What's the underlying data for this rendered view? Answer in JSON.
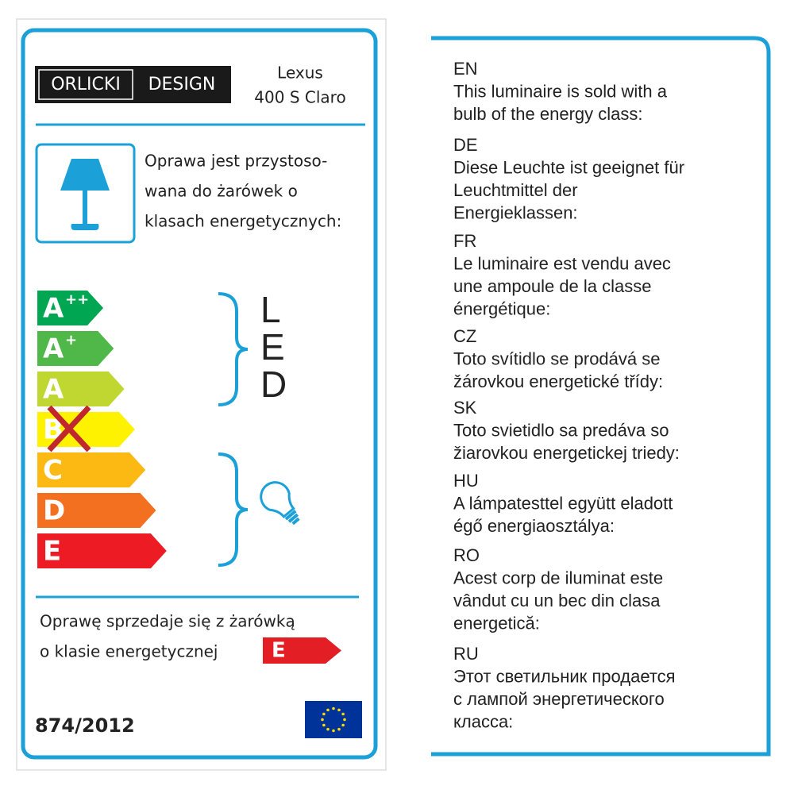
{
  "header": {
    "brand": [
      "ORLICKI",
      "DESIGN"
    ],
    "model": [
      "Lexus",
      "400 S Claro"
    ]
  },
  "intro": [
    "Oprawa jest przystoso-",
    "wana do żarówek o",
    "klasach energetycznych:"
  ],
  "classes": [
    {
      "letter": "A",
      "sup": "++"
    },
    {
      "letter": "A",
      "sup": "+"
    },
    {
      "letter": "A"
    },
    {
      "letter": "B"
    },
    {
      "letter": "C"
    },
    {
      "letter": "D"
    },
    {
      "letter": "E"
    }
  ],
  "led": [
    "L",
    "E",
    "D"
  ],
  "sold": {
    "lines": [
      "Oprawę sprzedaje się z żarówką",
      "o klasie energetycznej"
    ],
    "class": "E"
  },
  "regulation": "874/2012",
  "languages": [
    {
      "code": "EN",
      "lines": [
        "This luminaire is sold with a",
        "bulb of the energy class:"
      ]
    },
    {
      "code": "DE",
      "lines": [
        "Diese Leuchte ist geeignet für",
        "Leuchtmittel der",
        "Energieklassen:"
      ]
    },
    {
      "code": "FR",
      "lines": [
        "Le luminaire est vendu avec",
        "une ampoule de la classe",
        "énergétique:"
      ]
    },
    {
      "code": "CZ",
      "lines": [
        "Toto svítidlo se prodává se",
        "žárovkou energetické třídy:"
      ]
    },
    {
      "code": "SK",
      "lines": [
        "Toto svietidlo sa predáva so",
        "žiarovkou energetickej triedy:"
      ]
    },
    {
      "code": "HU",
      "lines": [
        "A lámpatesttel együtt eladott",
        "égő energiaosztálya:"
      ]
    },
    {
      "code": "RO",
      "lines": [
        "Acest corp de iluminat este",
        "vândut cu un bec din clasa",
        "energetică:"
      ]
    },
    {
      "code": "RU",
      "lines": [
        "Этот светильник продается",
        "с лампой энергетического",
        "класса:"
      ]
    }
  ]
}
